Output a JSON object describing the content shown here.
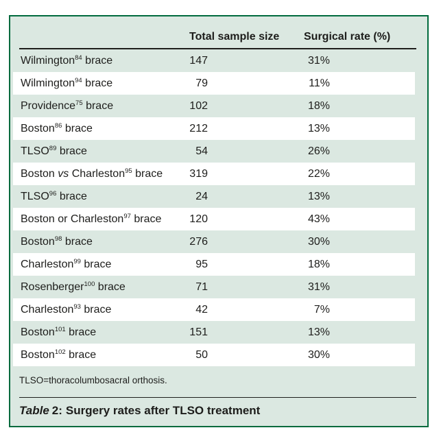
{
  "table": {
    "columns": [
      "Total sample size",
      "Surgical rate (%)"
    ],
    "rows": [
      {
        "pre": "Wilmington",
        "italic": "",
        "pre2": "",
        "sup": "84",
        "post": " brace",
        "size": "147",
        "rate": "31%"
      },
      {
        "pre": "Wilmington",
        "italic": "",
        "pre2": "",
        "sup": "94",
        "post": " brace",
        "size": "79",
        "rate": "11%"
      },
      {
        "pre": "Providence",
        "italic": "",
        "pre2": "",
        "sup": "75",
        "post": " brace",
        "size": "102",
        "rate": "18%"
      },
      {
        "pre": "Boston",
        "italic": "",
        "pre2": "",
        "sup": "86",
        "post": " brace",
        "size": "212",
        "rate": "13%"
      },
      {
        "pre": "TLSO",
        "italic": "",
        "pre2": "",
        "sup": "89",
        "post": " brace",
        "size": "54",
        "rate": "26%"
      },
      {
        "pre": "Boston ",
        "italic": "vs",
        "pre2": " Charleston",
        "sup": "95",
        "post": " brace",
        "size": "319",
        "rate": "22%"
      },
      {
        "pre": "TLSO",
        "italic": "",
        "pre2": "",
        "sup": "96",
        "post": " brace",
        "size": "24",
        "rate": "13%"
      },
      {
        "pre": "Boston or Charleston",
        "italic": "",
        "pre2": "",
        "sup": "97",
        "post": " brace",
        "size": "120",
        "rate": "43%"
      },
      {
        "pre": "Boston",
        "italic": "",
        "pre2": "",
        "sup": "98",
        "post": " brace",
        "size": "276",
        "rate": "30%"
      },
      {
        "pre": "Charleston",
        "italic": "",
        "pre2": "",
        "sup": "99",
        "post": " brace",
        "size": "95",
        "rate": "18%"
      },
      {
        "pre": "Rosenberger",
        "italic": "",
        "pre2": "",
        "sup": "100",
        "post": " brace",
        "size": "71",
        "rate": "31%"
      },
      {
        "pre": "Charleston",
        "italic": "",
        "pre2": "",
        "sup": "93",
        "post": " brace",
        "size": "42",
        "rate": "7%"
      },
      {
        "pre": "Boston",
        "italic": "",
        "pre2": "",
        "sup": "101",
        "post": " brace",
        "size": "151",
        "rate": "13%"
      },
      {
        "pre": "Boston",
        "italic": "",
        "pre2": "",
        "sup": "102",
        "post": " brace",
        "size": "50",
        "rate": "30%"
      }
    ],
    "footnote": "TLSO=thoracolumbosacral orthosis."
  },
  "caption": {
    "italic_word": "Table",
    "number": "2:",
    "title": "Surgery rates after TLSO treatment"
  },
  "colors": {
    "frame_border": "#006a3d",
    "frame_fill": "#dbe8e1",
    "text": "#1d1d1b",
    "row_white": "#ffffff"
  }
}
